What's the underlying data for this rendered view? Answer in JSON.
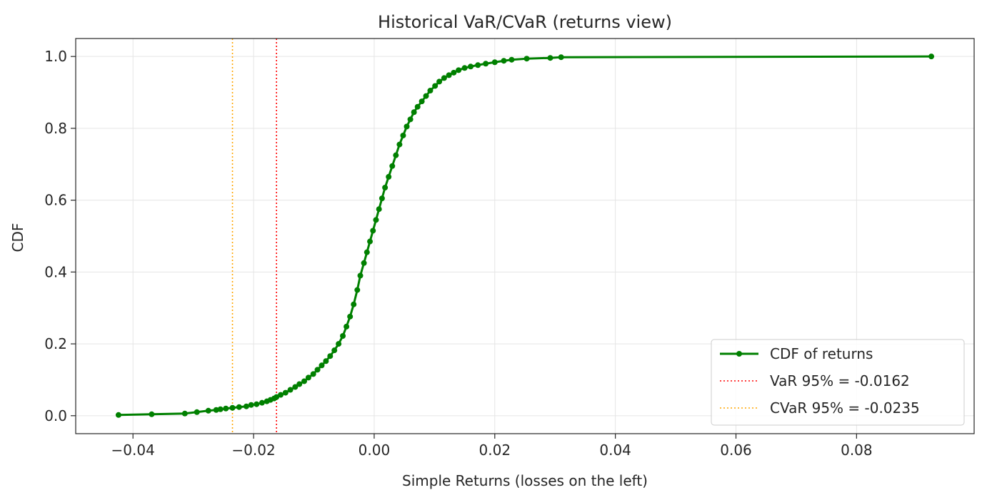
{
  "chart_data": {
    "type": "line",
    "title": "Historical VaR/CVaR (returns view)",
    "xlabel": "Simple Returns (losses on the left)",
    "ylabel": "CDF",
    "xlim": [
      -0.0495,
      0.0995
    ],
    "ylim": [
      -0.05,
      1.05
    ],
    "xticks": [
      -0.04,
      -0.02,
      0.0,
      0.02,
      0.04,
      0.06,
      0.08
    ],
    "xtick_labels": [
      "−0.04",
      "−0.02",
      "0.00",
      "0.02",
      "0.04",
      "0.06",
      "0.08"
    ],
    "yticks": [
      0.0,
      0.2,
      0.4,
      0.6,
      0.8,
      1.0
    ],
    "ytick_labels": [
      "0.0",
      "0.2",
      "0.4",
      "0.6",
      "0.8",
      "1.0"
    ],
    "grid": true,
    "legend_position": "lower-right",
    "series": [
      {
        "name": "CDF of returns",
        "color": "#008000",
        "marker": "circle",
        "x": [
          -0.0424,
          -0.0369,
          -0.0314,
          -0.0294,
          -0.0275,
          -0.0262,
          -0.0255,
          -0.0246,
          -0.0235,
          -0.0224,
          -0.0212,
          -0.0204,
          -0.0195,
          -0.0186,
          -0.0178,
          -0.0172,
          -0.0166,
          -0.0162,
          -0.0155,
          -0.0147,
          -0.0139,
          -0.0131,
          -0.0124,
          -0.0116,
          -0.0109,
          -0.0101,
          -0.0094,
          -0.0087,
          -0.008,
          -0.0073,
          -0.0066,
          -0.0059,
          -0.0052,
          -0.0046,
          -0.004,
          -0.0034,
          -0.0028,
          -0.0023,
          -0.0017,
          -0.0012,
          -0.0007,
          -0.0002,
          0.0003,
          0.0008,
          0.0013,
          0.0018,
          0.0024,
          0.003,
          0.0036,
          0.0042,
          0.0048,
          0.0054,
          0.006,
          0.0066,
          0.0072,
          0.0079,
          0.0086,
          0.0093,
          0.0101,
          0.0108,
          0.0116,
          0.0124,
          0.0132,
          0.014,
          0.015,
          0.016,
          0.0172,
          0.0185,
          0.02,
          0.0215,
          0.0228,
          0.0253,
          0.0292,
          0.031,
          0.0924
        ],
        "y": [
          0.002,
          0.004,
          0.006,
          0.01,
          0.014,
          0.016,
          0.018,
          0.02,
          0.022,
          0.024,
          0.026,
          0.03,
          0.032,
          0.036,
          0.04,
          0.044,
          0.048,
          0.052,
          0.058,
          0.064,
          0.072,
          0.08,
          0.088,
          0.096,
          0.106,
          0.116,
          0.128,
          0.14,
          0.152,
          0.166,
          0.182,
          0.2,
          0.222,
          0.248,
          0.276,
          0.31,
          0.35,
          0.39,
          0.425,
          0.455,
          0.485,
          0.515,
          0.545,
          0.575,
          0.605,
          0.635,
          0.665,
          0.695,
          0.725,
          0.755,
          0.78,
          0.805,
          0.825,
          0.845,
          0.86,
          0.875,
          0.89,
          0.905,
          0.918,
          0.93,
          0.94,
          0.948,
          0.955,
          0.962,
          0.968,
          0.972,
          0.976,
          0.98,
          0.984,
          0.988,
          0.991,
          0.994,
          0.996,
          0.998,
          1.0
        ]
      }
    ],
    "vlines": [
      {
        "name": "VaR 95% = -0.0162",
        "x": -0.0162,
        "color": "#ff0000"
      },
      {
        "name": "CVaR 95% = -0.0235",
        "x": -0.0235,
        "color": "#ffa500"
      }
    ]
  }
}
